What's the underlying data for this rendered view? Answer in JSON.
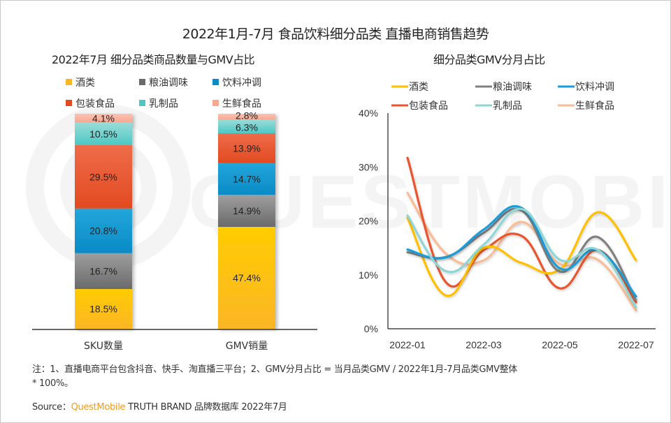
{
  "title": "2022年1月-7月 食品饮料细分品类 直播电商销售趋势",
  "watermark": "QUESTMOBILE",
  "colors": {
    "酒类": "#ffc000",
    "粮油调味": "#808080",
    "饮料冲调": "#1a9cd8",
    "包装食品": "#e8552e",
    "乳制品": "#8fd5d5",
    "生鲜食品": "#f8bd96"
  },
  "bar_colors": {
    "酒类": [
      "#ffcc00",
      "#fbb626"
    ],
    "粮油调味": [
      "#9e9e9e",
      "#6a6a6a"
    ],
    "饮料冲调": [
      "#22a6da",
      "#0a8ac6"
    ],
    "包装食品": [
      "#ee6c4a",
      "#e24a20"
    ],
    "乳制品": [
      "#9adcd8",
      "#4cc8c4"
    ],
    "生鲜食品": [
      "#fbc2b0",
      "#f7a892"
    ]
  },
  "chart_data": [
    {
      "type": "bar",
      "stacked": true,
      "title": "2022年7月 细分品类商品数量与GMV占比",
      "categories": [
        "SKU数量",
        "GMV销量"
      ],
      "legend": [
        "酒类",
        "粮油调味",
        "饮料冲调",
        "包装食品",
        "乳制品",
        "生鲜食品"
      ],
      "legend_position": "top",
      "series": [
        {
          "name": "酒类",
          "values": [
            18.5,
            47.4
          ],
          "labels": [
            "18.5%",
            "47.4%"
          ]
        },
        {
          "name": "粮油调味",
          "values": [
            16.7,
            14.9
          ],
          "labels": [
            "16.7%",
            "14.9%"
          ]
        },
        {
          "name": "饮料冲调",
          "values": [
            20.8,
            14.7
          ],
          "labels": [
            "20.8%",
            "14.7%"
          ]
        },
        {
          "name": "包装食品",
          "values": [
            29.5,
            13.9
          ],
          "labels": [
            "29.5%",
            "13.9%"
          ]
        },
        {
          "name": "乳制品",
          "values": [
            10.5,
            6.3
          ],
          "labels": [
            "10.5%",
            "6.3%"
          ]
        },
        {
          "name": "生鲜食品",
          "values": [
            4.1,
            2.8
          ],
          "labels": [
            "4.1%",
            "2.8%"
          ]
        }
      ],
      "ylim": [
        0,
        100
      ],
      "grid": false
    },
    {
      "type": "line",
      "title": "细分品类GMV分月占比",
      "x": [
        "2022-01",
        "2022-02",
        "2022-03",
        "2022-04",
        "2022-05",
        "2022-06",
        "2022-07"
      ],
      "x_tick_labels": [
        "2022-01",
        "2022-03",
        "2022-05",
        "2022-07"
      ],
      "y_tick_labels": [
        "0%",
        "10%",
        "20%",
        "30%",
        "40%"
      ],
      "ylim": [
        0,
        40
      ],
      "ylabel": "",
      "xlabel": "",
      "grid": false,
      "legend_position": "top",
      "series": [
        {
          "name": "酒类",
          "values": [
            20.6,
            6.2,
            15.0,
            12.2,
            11.0,
            21.6,
            12.7
          ]
        },
        {
          "name": "粮油调味",
          "values": [
            14.2,
            13.3,
            17.8,
            21.9,
            10.6,
            17.0,
            5.3
          ]
        },
        {
          "name": "饮料冲调",
          "values": [
            14.7,
            13.2,
            18.4,
            22.4,
            11.2,
            14.6,
            6.0
          ]
        },
        {
          "name": "包装食品",
          "values": [
            31.7,
            8.7,
            14.6,
            17.2,
            7.5,
            14.6,
            4.9
          ]
        },
        {
          "name": "乳制品",
          "values": [
            21.0,
            10.7,
            15.6,
            22.2,
            12.8,
            14.6,
            4.0
          ]
        },
        {
          "name": "生鲜食品",
          "values": [
            25.2,
            14.0,
            12.7,
            19.8,
            12.0,
            12.8,
            3.4
          ]
        }
      ]
    }
  ],
  "notes": {
    "line1": "注：1、直播电商平台包含抖音、快手、淘直播三平台；2、GMV分月占比 = 当月品类GMV / 2022年1月-7月品类GMV整体",
    "line2": "* 100%。"
  },
  "source": {
    "prefix": "Source：",
    "brand": "QuestMobile",
    "suffix": " TRUTH BRAND 品牌数据库 2022年7月"
  }
}
